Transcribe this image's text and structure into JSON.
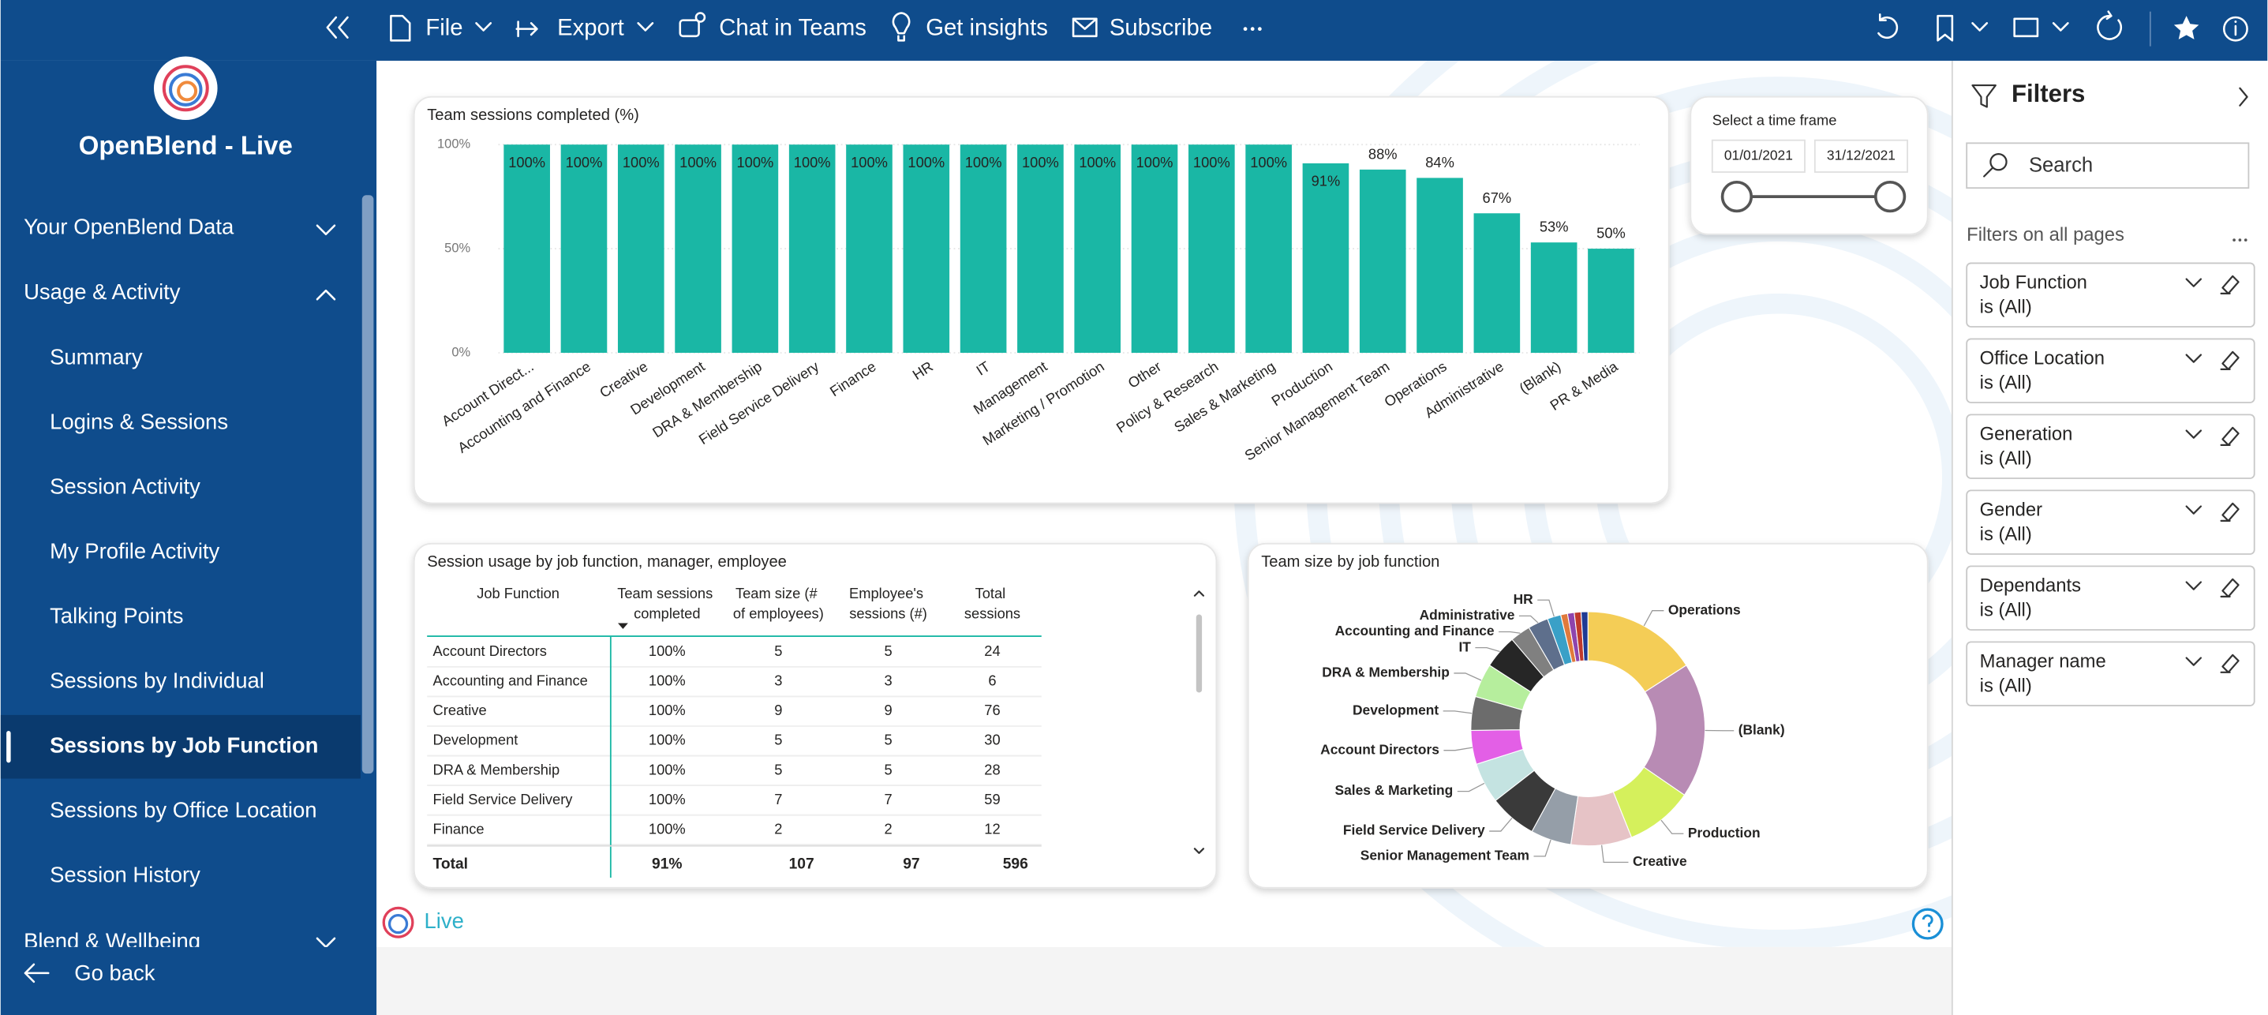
{
  "toolbar": {
    "items": [
      "File",
      "Export",
      "Chat in Teams",
      "Get insights",
      "Subscribe"
    ]
  },
  "sidebar": {
    "app_name": "OpenBlend - Live",
    "sections": [
      {
        "label": "Your OpenBlend Data"
      },
      {
        "label": "Usage & Activity",
        "items": [
          "Summary",
          "Logins & Sessions",
          "Session Activity",
          "My Profile Activity",
          "Talking Points",
          "Sessions by Individual",
          "Sessions by Job Function",
          "Sessions by Office Location",
          "Session History"
        ]
      },
      {
        "label": "Blend & Wellbeing"
      }
    ],
    "back": "Go back"
  },
  "time_slicer": {
    "title": "Select a time frame",
    "start": "01/01/2021",
    "end": "31/12/2021"
  },
  "table": {
    "title": "Session usage by job function, manager, employee",
    "columns": [
      "Job Function",
      "Team sessions completed",
      "Team size (# of employees)",
      "Employee's sessions (#)",
      "Total sessions"
    ],
    "rows": [
      [
        "Account Directors",
        "100%",
        "5",
        "5",
        "24"
      ],
      [
        "Accounting and Finance",
        "100%",
        "3",
        "3",
        "6"
      ],
      [
        "Creative",
        "100%",
        "9",
        "9",
        "76"
      ],
      [
        "Development",
        "100%",
        "5",
        "5",
        "30"
      ],
      [
        "DRA & Membership",
        "100%",
        "5",
        "5",
        "28"
      ],
      [
        "Field Service Delivery",
        "100%",
        "7",
        "7",
        "59"
      ],
      [
        "Finance",
        "100%",
        "2",
        "2",
        "12"
      ]
    ],
    "total": [
      "Total",
      "91%",
      "107",
      "97",
      "596"
    ]
  },
  "chart_data": [
    {
      "type": "bar",
      "title": "Team sessions completed (%)",
      "categories": [
        "Account Direct...",
        "Accounting and Finance",
        "Creative",
        "Development",
        "DRA & Membership",
        "Field Service Delivery",
        "Finance",
        "HR",
        "IT",
        "Management",
        "Marketing / Promotion",
        "Other",
        "Policy & Research",
        "Sales & Marketing",
        "Production",
        "Senior Management Team",
        "Operations",
        "Administrative",
        "(Blank)",
        "PR & Media"
      ],
      "values": [
        100,
        100,
        100,
        100,
        100,
        100,
        100,
        100,
        100,
        100,
        100,
        100,
        100,
        100,
        91,
        88,
        84,
        67,
        53,
        50
      ],
      "value_labels": [
        "100%",
        "100%",
        "100%",
        "100%",
        "100%",
        "100%",
        "100%",
        "100%",
        "100%",
        "100%",
        "100%",
        "100%",
        "100%",
        "100%",
        "91%",
        "88%",
        "84%",
        "67%",
        "53%",
        "50%"
      ],
      "color": "#1ab7a5",
      "ylim": [
        0,
        100
      ],
      "yticks": [
        {
          "value": 0,
          "label": "0%"
        },
        {
          "value": 50,
          "label": "50%"
        },
        {
          "value": 100,
          "label": "100%"
        }
      ],
      "grid": true
    },
    {
      "type": "donut",
      "title": "Team size by job function",
      "categories": [
        "Operations",
        "(Blank)",
        "Production",
        "Creative",
        "Senior Management Team",
        "Field Service Delivery",
        "Sales & Marketing",
        "Account Directors",
        "Development",
        "DRA & Membership",
        "IT",
        "Accounting and Finance",
        "Administrative",
        "HR",
        null,
        null,
        null,
        null
      ],
      "values": [
        17,
        20,
        10,
        9,
        6,
        7,
        6,
        5,
        5,
        5,
        5,
        3,
        3,
        2,
        1,
        1,
        1,
        1
      ],
      "colors": [
        "#f4cd56",
        "#b88bb4",
        "#d5f05c",
        "#e6c3c6",
        "#959ea8",
        "#3a3a3a",
        "#c4e3e1",
        "#e35fe6",
        "#6c6c6c",
        "#b6ee9d",
        "#262626",
        "#808080",
        "#5e6f8c",
        "#3aa0c7",
        "#e07a3c",
        "#8e44ad",
        "#c0392b",
        "#1f3a93"
      ]
    }
  ],
  "filters": {
    "title": "Filters",
    "search": "Search",
    "section": "Filters on all pages",
    "cards": [
      {
        "field": "Job Function",
        "state": "is (All)"
      },
      {
        "field": "Office Location",
        "state": "is (All)"
      },
      {
        "field": "Generation",
        "state": "is (All)"
      },
      {
        "field": "Gender",
        "state": "is (All)"
      },
      {
        "field": "Dependants",
        "state": "is (All)"
      },
      {
        "field": "Manager name",
        "state": "is (All)"
      }
    ]
  },
  "footer": {
    "brand": "Live"
  }
}
